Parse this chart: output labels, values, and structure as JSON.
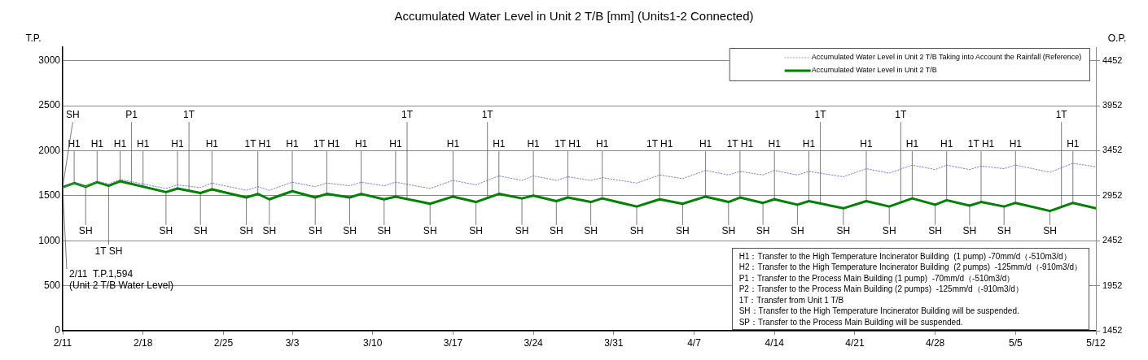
{
  "chart_data": {
    "type": "line",
    "title": "Accumulated Water Level in Unit 2 T/B [mm] (Units1-2 Connected)",
    "ylabel": "T.P.",
    "y2label": "O.P.",
    "x": [
      "--02-11",
      "--02-12",
      "--02-13",
      "--02-14",
      "--02-15",
      "--02-16",
      "--02-20",
      "--02-21",
      "--02-23",
      "--02-24",
      "--02-27",
      "--02-28",
      "--03-01",
      "--03-03",
      "--03-05",
      "--03-06",
      "--03-08",
      "--03-09",
      "--03-11",
      "--03-12",
      "--03-15",
      "--03-17",
      "--03-19",
      "--03-21",
      "--03-23",
      "--03-24",
      "--03-26",
      "--03-27",
      "--03-29",
      "--03-30",
      "--04-02",
      "--04-04",
      "--04-06",
      "--04-08",
      "--04-10",
      "--04-11",
      "--04-13",
      "--04-14",
      "--04-16",
      "--04-17",
      "--04-20",
      "--04-22",
      "--04-24",
      "--04-26",
      "--04-28",
      "--04-29",
      "--05-01",
      "--05-02",
      "--05-04",
      "--05-05",
      "--05-08",
      "--05-10",
      "--05-12"
    ],
    "series": [
      {
        "name": "Accumulated Water Level in Unit 2 T/B Taking into Account the Rainfall (Reference)",
        "color": "#7f7fd4",
        "line_style": "dotted",
        "values": [
          1590,
          1640,
          1600,
          1660,
          1630,
          1680,
          1580,
          1620,
          1590,
          1640,
          1560,
          1600,
          1560,
          1650,
          1600,
          1640,
          1610,
          1650,
          1610,
          1650,
          1580,
          1670,
          1620,
          1720,
          1670,
          1720,
          1670,
          1710,
          1670,
          1700,
          1640,
          1730,
          1690,
          1780,
          1730,
          1770,
          1730,
          1780,
          1730,
          1770,
          1710,
          1800,
          1750,
          1840,
          1790,
          1840,
          1790,
          1830,
          1800,
          1840,
          1760,
          1860,
          1820
        ]
      },
      {
        "name": "Accumulated Water Level in Unit 2 T/B",
        "color": "#008000",
        "line_style": "solid",
        "values": [
          1594,
          1640,
          1600,
          1650,
          1610,
          1660,
          1540,
          1580,
          1530,
          1570,
          1480,
          1520,
          1460,
          1550,
          1480,
          1520,
          1480,
          1520,
          1460,
          1490,
          1410,
          1490,
          1430,
          1520,
          1470,
          1500,
          1440,
          1480,
          1430,
          1470,
          1380,
          1460,
          1410,
          1490,
          1430,
          1480,
          1420,
          1460,
          1400,
          1440,
          1360,
          1440,
          1380,
          1470,
          1400,
          1450,
          1390,
          1430,
          1380,
          1420,
          1330,
          1420,
          1360
        ]
      }
    ],
    "xlim": [
      "--02-11",
      "--05-12"
    ],
    "xticks": [
      {
        "value": "--02-11",
        "label": "2/11"
      },
      {
        "value": "--02-18",
        "label": "2/18"
      },
      {
        "value": "--02-25",
        "label": "2/25"
      },
      {
        "value": "--03-03",
        "label": "3/3"
      },
      {
        "value": "--03-10",
        "label": "3/10"
      },
      {
        "value": "--03-17",
        "label": "3/17"
      },
      {
        "value": "--03-24",
        "label": "3/24"
      },
      {
        "value": "--03-31",
        "label": "3/31"
      },
      {
        "value": "--04-07",
        "label": "4/7"
      },
      {
        "value": "--04-14",
        "label": "4/14"
      },
      {
        "value": "--04-21",
        "label": "4/21"
      },
      {
        "value": "--04-28",
        "label": "4/28"
      },
      {
        "value": "--05-05",
        "label": "5/5"
      },
      {
        "value": "--05-12",
        "label": "5/12"
      }
    ],
    "ylim": [
      0,
      3150
    ],
    "yticks": [
      0,
      500,
      1000,
      1500,
      2000,
      2500,
      3000
    ],
    "y2lim": [
      1452,
      4602
    ],
    "y2ticks": [
      1452,
      1952,
      2452,
      2952,
      3452,
      3952,
      4452
    ],
    "grid": "y",
    "legend": "top right",
    "annotations": [
      {
        "text": "H1",
        "x": "--02-12",
        "y": 1640
      },
      {
        "text": "H1",
        "x": "--02-14",
        "y": 1650
      },
      {
        "text": "H1",
        "x": "--02-16",
        "y": 1660
      },
      {
        "text": "H1",
        "x": "--02-18",
        "y": 1600
      },
      {
        "text": "H1",
        "x": "--02-21",
        "y": 1580
      },
      {
        "text": "H1",
        "x": "--02-24",
        "y": 1570
      },
      {
        "text": "H1",
        "x": "--03-03",
        "y": 1550
      },
      {
        "text": "H1",
        "x": "--03-09",
        "y": 1520
      },
      {
        "text": "H1",
        "x": "--03-12",
        "y": 1490
      },
      {
        "text": "H1",
        "x": "--03-17",
        "y": 1490
      },
      {
        "text": "H1",
        "x": "--03-21",
        "y": 1520
      },
      {
        "text": "H1",
        "x": "--03-24",
        "y": 1500
      },
      {
        "text": "H1",
        "x": "--03-30",
        "y": 1470
      },
      {
        "text": "H1",
        "x": "--04-08",
        "y": 1490
      },
      {
        "text": "H1",
        "x": "--04-14",
        "y": 1460
      },
      {
        "text": "H1",
        "x": "--04-17",
        "y": 1440
      },
      {
        "text": "H1",
        "x": "--04-22",
        "y": 1440
      },
      {
        "text": "H1",
        "x": "--04-26",
        "y": 1470
      },
      {
        "text": "H1",
        "x": "--04-29",
        "y": 1450
      },
      {
        "text": "H1",
        "x": "--05-05",
        "y": 1420
      },
      {
        "text": "H1",
        "x": "--05-10",
        "y": 1420
      },
      {
        "text": "1T H1",
        "x": "--02-28",
        "y": 1520
      },
      {
        "text": "1T H1",
        "x": "--03-06",
        "y": 1520
      },
      {
        "text": "1T H1",
        "x": "--03-27",
        "y": 1480
      },
      {
        "text": "1T H1",
        "x": "--04-04",
        "y": 1460
      },
      {
        "text": "1T H1",
        "x": "--04-11",
        "y": 1480
      },
      {
        "text": "1T H1",
        "x": "--05-02",
        "y": 1430
      },
      {
        "text": "1T",
        "x": "--02-22",
        "y": 1560
      },
      {
        "text": "1T",
        "x": "--03-13",
        "y": 1460
      },
      {
        "text": "1T",
        "x": "--03-20",
        "y": 1480
      },
      {
        "text": "1T",
        "x": "--04-18",
        "y": 1410
      },
      {
        "text": "1T",
        "x": "--04-25",
        "y": 1430
      },
      {
        "text": "1T",
        "x": "--05-09",
        "y": 1380
      },
      {
        "text": "P1",
        "x": "--02-17",
        "y": 1630
      },
      {
        "text": "SH",
        "x": "--02-11",
        "y": 1594
      },
      {
        "text": "SH",
        "x": "--02-13",
        "y": 1600
      },
      {
        "text": "1T SH",
        "x": "--02-15",
        "y": 1610
      },
      {
        "text": "SH",
        "x": "--02-20",
        "y": 1540
      },
      {
        "text": "SH",
        "x": "--02-23",
        "y": 1530
      },
      {
        "text": "SH",
        "x": "--02-27",
        "y": 1480
      },
      {
        "text": "SH",
        "x": "--03-01",
        "y": 1460
      },
      {
        "text": "SH",
        "x": "--03-05",
        "y": 1480
      },
      {
        "text": "SH",
        "x": "--03-08",
        "y": 1480
      },
      {
        "text": "SH",
        "x": "--03-11",
        "y": 1460
      },
      {
        "text": "SH",
        "x": "--03-15",
        "y": 1410
      },
      {
        "text": "SH",
        "x": "--03-19",
        "y": 1430
      },
      {
        "text": "SH",
        "x": "--03-23",
        "y": 1470
      },
      {
        "text": "SH",
        "x": "--03-26",
        "y": 1440
      },
      {
        "text": "SH",
        "x": "--03-29",
        "y": 1430
      },
      {
        "text": "SH",
        "x": "--04-02",
        "y": 1380
      },
      {
        "text": "SH",
        "x": "--04-06",
        "y": 1410
      },
      {
        "text": "SH",
        "x": "--04-10",
        "y": 1430
      },
      {
        "text": "SH",
        "x": "--04-13",
        "y": 1420
      },
      {
        "text": "SH",
        "x": "--04-16",
        "y": 1400
      },
      {
        "text": "SH",
        "x": "--04-20",
        "y": 1360
      },
      {
        "text": "SH",
        "x": "--04-24",
        "y": 1380
      },
      {
        "text": "SH",
        "x": "--04-28",
        "y": 1400
      },
      {
        "text": "SH",
        "x": "--05-01",
        "y": 1390
      },
      {
        "text": "SH",
        "x": "--05-04",
        "y": 1380
      },
      {
        "text": "SH",
        "x": "--05-08",
        "y": 1330
      },
      {
        "text": "2/11  T.P.1,594\n(Unit 2 T/B Water Level)",
        "x": "--02-11",
        "y": 1594
      },
      "H1：Transfer to the High Temperature Incinerator Building  (1 pump) -70mm/d（-510m3/d）",
      "H2：Transfer to the High Temperature Incinerator Building  (2 pumps)  -125mm/d（-910m3/d）",
      "P1：Transfer to the Process Main Building (1 pump)  -70mm/d（-510m3/d）",
      "P2：Transfer to the Process Main Building (2 pumps)  -125mm/d（-910m3/d）",
      "1T：Transfer from Unit 1 T/B",
      "SH：Transfer to the High Temperature Incinerator Building will be suspended.",
      "SP：Transfer to the Process Main Building will be suspended."
    ]
  }
}
